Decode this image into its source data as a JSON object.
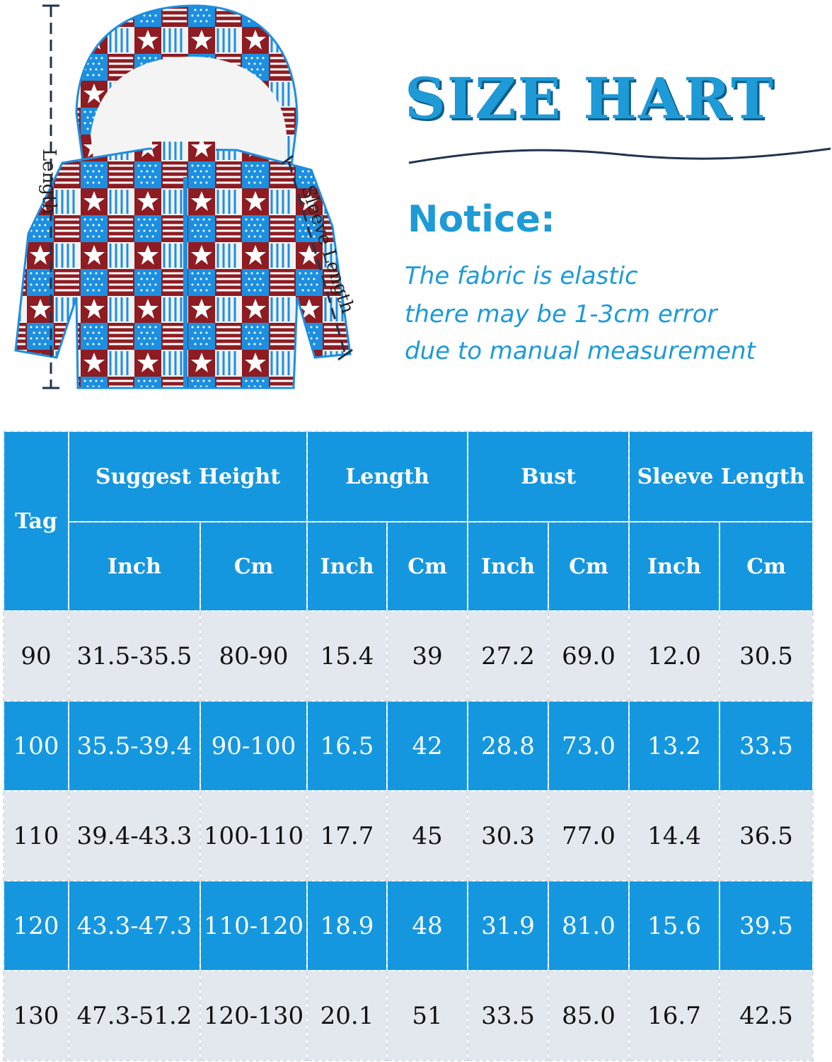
{
  "colors": {
    "brand_blue": "#1e9ad6",
    "table_blue": "#1597e0",
    "row_grey": "#e3e8ee",
    "jacket_red": "#8e1c22",
    "jacket_blue": "#1c8fe0"
  },
  "illustration": {
    "length_label": "Length",
    "sleeve_label": "Sleeve Length"
  },
  "title": "SIZE HART",
  "notice": {
    "heading": "Notice:",
    "lines": [
      "The fabric is elastic",
      "there may be 1-3cm error",
      "due to manual measurement"
    ]
  },
  "table": {
    "tag_header": "Tag",
    "groups": [
      "Suggest Height",
      "Length",
      "Bust",
      "Sleeve Length"
    ],
    "units": [
      "Inch",
      "Cm",
      "Inch",
      "Cm",
      "Inch",
      "Cm",
      "Inch",
      "Cm"
    ],
    "rows": [
      [
        "90",
        "31.5-35.5",
        "80-90",
        "15.4",
        "39",
        "27.2",
        "69.0",
        "12.0",
        "30.5"
      ],
      [
        "100",
        "35.5-39.4",
        "90-100",
        "16.5",
        "42",
        "28.8",
        "73.0",
        "13.2",
        "33.5"
      ],
      [
        "110",
        "39.4-43.3",
        "100-110",
        "17.7",
        "45",
        "30.3",
        "77.0",
        "14.4",
        "36.5"
      ],
      [
        "120",
        "43.3-47.3",
        "110-120",
        "18.9",
        "48",
        "31.9",
        "81.0",
        "15.6",
        "39.5"
      ],
      [
        "130",
        "47.3-51.2",
        "120-130",
        "20.1",
        "51",
        "33.5",
        "85.0",
        "16.7",
        "42.5"
      ]
    ]
  }
}
